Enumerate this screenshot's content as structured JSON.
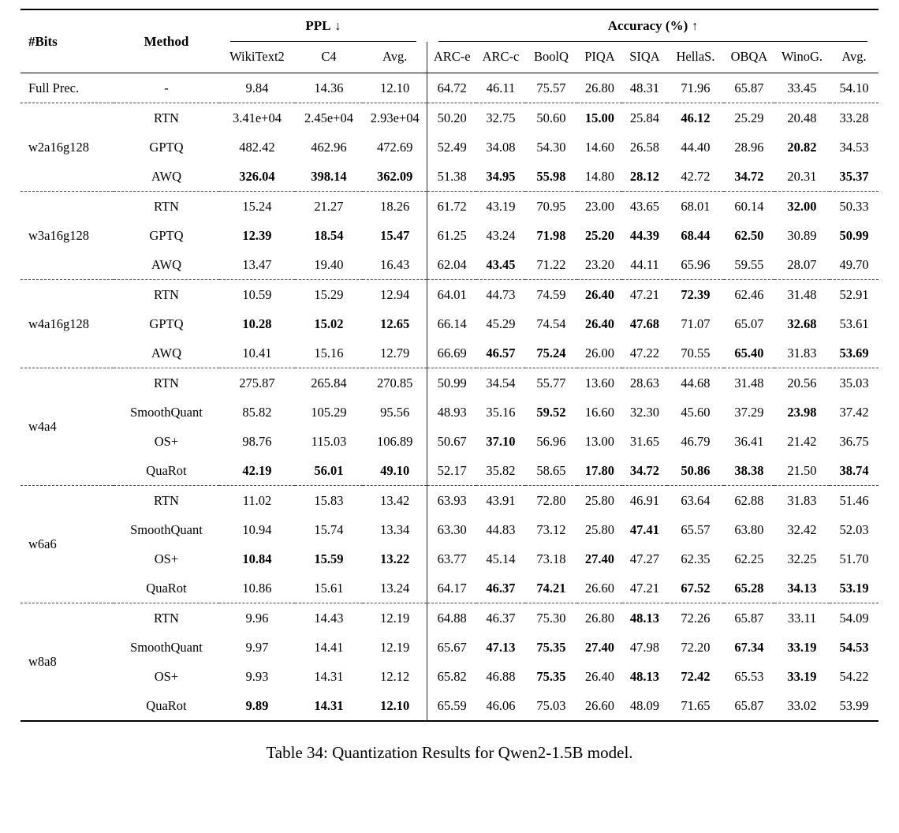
{
  "page": {
    "caption": "Table 34: Quantization Results for Qwen2-1.5B model."
  },
  "table": {
    "header": {
      "bits": "#Bits",
      "method": "Method",
      "ppl_group": {
        "label": "PPL",
        "arrow": "↓"
      },
      "acc_group": {
        "label": "Accuracy (%)",
        "arrow": "↑"
      },
      "ppl_cols": [
        "WikiText2",
        "C4",
        "Avg."
      ],
      "acc_cols": [
        "ARC-e",
        "ARC-c",
        "BoolQ",
        "PIQA",
        "SIQA",
        "HellaS.",
        "OBQA",
        "WinoG.",
        "Avg."
      ]
    },
    "groups": [
      {
        "bits": "Full Prec.",
        "rows": [
          {
            "method": "-",
            "values": [
              "9.84",
              "14.36",
              "12.10",
              "64.72",
              "46.11",
              "75.57",
              "26.80",
              "48.31",
              "71.96",
              "65.87",
              "33.45",
              "54.10"
            ],
            "bold": [
              0,
              0,
              0,
              0,
              0,
              0,
              0,
              0,
              0,
              0,
              0,
              0
            ]
          }
        ]
      },
      {
        "bits": "w2a16g128",
        "rows": [
          {
            "method": "RTN",
            "values": [
              "3.41e+04",
              "2.45e+04",
              "2.93e+04",
              "50.20",
              "32.75",
              "50.60",
              "15.00",
              "25.84",
              "46.12",
              "25.29",
              "20.48",
              "33.28"
            ],
            "bold": [
              0,
              0,
              0,
              0,
              0,
              0,
              1,
              0,
              1,
              0,
              0,
              0
            ]
          },
          {
            "method": "GPTQ",
            "values": [
              "482.42",
              "462.96",
              "472.69",
              "52.49",
              "34.08",
              "54.30",
              "14.60",
              "26.58",
              "44.40",
              "28.96",
              "20.82",
              "34.53"
            ],
            "bold": [
              0,
              0,
              0,
              0,
              0,
              0,
              0,
              0,
              0,
              0,
              1,
              0
            ]
          },
          {
            "method": "AWQ",
            "values": [
              "326.04",
              "398.14",
              "362.09",
              "51.38",
              "34.95",
              "55.98",
              "14.80",
              "28.12",
              "42.72",
              "34.72",
              "20.31",
              "35.37"
            ],
            "bold": [
              1,
              1,
              1,
              0,
              1,
              1,
              0,
              1,
              0,
              1,
              0,
              1
            ]
          }
        ]
      },
      {
        "bits": "w3a16g128",
        "rows": [
          {
            "method": "RTN",
            "values": [
              "15.24",
              "21.27",
              "18.26",
              "61.72",
              "43.19",
              "70.95",
              "23.00",
              "43.65",
              "68.01",
              "60.14",
              "32.00",
              "50.33"
            ],
            "bold": [
              0,
              0,
              0,
              0,
              0,
              0,
              0,
              0,
              0,
              0,
              1,
              0
            ]
          },
          {
            "method": "GPTQ",
            "values": [
              "12.39",
              "18.54",
              "15.47",
              "61.25",
              "43.24",
              "71.98",
              "25.20",
              "44.39",
              "68.44",
              "62.50",
              "30.89",
              "50.99"
            ],
            "bold": [
              1,
              1,
              1,
              0,
              0,
              1,
              1,
              1,
              1,
              1,
              0,
              1
            ]
          },
          {
            "method": "AWQ",
            "values": [
              "13.47",
              "19.40",
              "16.43",
              "62.04",
              "43.45",
              "71.22",
              "23.20",
              "44.11",
              "65.96",
              "59.55",
              "28.07",
              "49.70"
            ],
            "bold": [
              0,
              0,
              0,
              0,
              1,
              0,
              0,
              0,
              0,
              0,
              0,
              0
            ]
          }
        ]
      },
      {
        "bits": "w4a16g128",
        "rows": [
          {
            "method": "RTN",
            "values": [
              "10.59",
              "15.29",
              "12.94",
              "64.01",
              "44.73",
              "74.59",
              "26.40",
              "47.21",
              "72.39",
              "62.46",
              "31.48",
              "52.91"
            ],
            "bold": [
              0,
              0,
              0,
              0,
              0,
              0,
              1,
              0,
              1,
              0,
              0,
              0
            ]
          },
          {
            "method": "GPTQ",
            "values": [
              "10.28",
              "15.02",
              "12.65",
              "66.14",
              "45.29",
              "74.54",
              "26.40",
              "47.68",
              "71.07",
              "65.07",
              "32.68",
              "53.61"
            ],
            "bold": [
              1,
              1,
              1,
              0,
              0,
              0,
              1,
              1,
              0,
              0,
              1,
              0
            ]
          },
          {
            "method": "AWQ",
            "values": [
              "10.41",
              "15.16",
              "12.79",
              "66.69",
              "46.57",
              "75.24",
              "26.00",
              "47.22",
              "70.55",
              "65.40",
              "31.83",
              "53.69"
            ],
            "bold": [
              0,
              0,
              0,
              0,
              1,
              1,
              0,
              0,
              0,
              1,
              0,
              1
            ]
          }
        ]
      },
      {
        "bits": "w4a4",
        "rows": [
          {
            "method": "RTN",
            "values": [
              "275.87",
              "265.84",
              "270.85",
              "50.99",
              "34.54",
              "55.77",
              "13.60",
              "28.63",
              "44.68",
              "31.48",
              "20.56",
              "35.03"
            ],
            "bold": [
              0,
              0,
              0,
              0,
              0,
              0,
              0,
              0,
              0,
              0,
              0,
              0
            ]
          },
          {
            "method": "SmoothQuant",
            "values": [
              "85.82",
              "105.29",
              "95.56",
              "48.93",
              "35.16",
              "59.52",
              "16.60",
              "32.30",
              "45.60",
              "37.29",
              "23.98",
              "37.42"
            ],
            "bold": [
              0,
              0,
              0,
              0,
              0,
              1,
              0,
              0,
              0,
              0,
              1,
              0
            ]
          },
          {
            "method": "OS+",
            "values": [
              "98.76",
              "115.03",
              "106.89",
              "50.67",
              "37.10",
              "56.96",
              "13.00",
              "31.65",
              "46.79",
              "36.41",
              "21.42",
              "36.75"
            ],
            "bold": [
              0,
              0,
              0,
              0,
              1,
              0,
              0,
              0,
              0,
              0,
              0,
              0
            ]
          },
          {
            "method": "QuaRot",
            "values": [
              "42.19",
              "56.01",
              "49.10",
              "52.17",
              "35.82",
              "58.65",
              "17.80",
              "34.72",
              "50.86",
              "38.38",
              "21.50",
              "38.74"
            ],
            "bold": [
              1,
              1,
              1,
              0,
              0,
              0,
              1,
              1,
              1,
              1,
              0,
              1
            ]
          }
        ]
      },
      {
        "bits": "w6a6",
        "rows": [
          {
            "method": "RTN",
            "values": [
              "11.02",
              "15.83",
              "13.42",
              "63.93",
              "43.91",
              "72.80",
              "25.80",
              "46.91",
              "63.64",
              "62.88",
              "31.83",
              "51.46"
            ],
            "bold": [
              0,
              0,
              0,
              0,
              0,
              0,
              0,
              0,
              0,
              0,
              0,
              0
            ]
          },
          {
            "method": "SmoothQuant",
            "values": [
              "10.94",
              "15.74",
              "13.34",
              "63.30",
              "44.83",
              "73.12",
              "25.80",
              "47.41",
              "65.57",
              "63.80",
              "32.42",
              "52.03"
            ],
            "bold": [
              0,
              0,
              0,
              0,
              0,
              0,
              0,
              1,
              0,
              0,
              0,
              0
            ]
          },
          {
            "method": "OS+",
            "values": [
              "10.84",
              "15.59",
              "13.22",
              "63.77",
              "45.14",
              "73.18",
              "27.40",
              "47.27",
              "62.35",
              "62.25",
              "32.25",
              "51.70"
            ],
            "bold": [
              1,
              1,
              1,
              0,
              0,
              0,
              1,
              0,
              0,
              0,
              0,
              0
            ]
          },
          {
            "method": "QuaRot",
            "values": [
              "10.86",
              "15.61",
              "13.24",
              "64.17",
              "46.37",
              "74.21",
              "26.60",
              "47.21",
              "67.52",
              "65.28",
              "34.13",
              "53.19"
            ],
            "bold": [
              0,
              0,
              0,
              0,
              1,
              1,
              0,
              0,
              1,
              1,
              1,
              1
            ]
          }
        ]
      },
      {
        "bits": "w8a8",
        "rows": [
          {
            "method": "RTN",
            "values": [
              "9.96",
              "14.43",
              "12.19",
              "64.88",
              "46.37",
              "75.30",
              "26.80",
              "48.13",
              "72.26",
              "65.87",
              "33.11",
              "54.09"
            ],
            "bold": [
              0,
              0,
              0,
              0,
              0,
              0,
              0,
              1,
              0,
              0,
              0,
              0
            ]
          },
          {
            "method": "SmoothQuant",
            "values": [
              "9.97",
              "14.41",
              "12.19",
              "65.67",
              "47.13",
              "75.35",
              "27.40",
              "47.98",
              "72.20",
              "67.34",
              "33.19",
              "54.53"
            ],
            "bold": [
              0,
              0,
              0,
              0,
              1,
              1,
              1,
              0,
              0,
              1,
              1,
              1
            ]
          },
          {
            "method": "OS+",
            "values": [
              "9.93",
              "14.31",
              "12.12",
              "65.82",
              "46.88",
              "75.35",
              "26.40",
              "48.13",
              "72.42",
              "65.53",
              "33.19",
              "54.22"
            ],
            "bold": [
              0,
              0,
              0,
              0,
              0,
              1,
              0,
              1,
              1,
              0,
              1,
              0
            ]
          },
          {
            "method": "QuaRot",
            "values": [
              "9.89",
              "14.31",
              "12.10",
              "65.59",
              "46.06",
              "75.03",
              "26.60",
              "48.09",
              "71.65",
              "65.87",
              "33.02",
              "53.99"
            ],
            "bold": [
              1,
              1,
              1,
              0,
              0,
              0,
              0,
              0,
              0,
              0,
              0,
              0
            ]
          }
        ]
      }
    ]
  }
}
